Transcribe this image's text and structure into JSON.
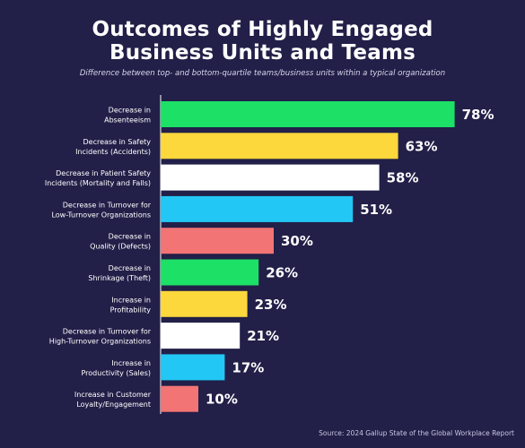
{
  "header": {
    "title_line1": "Outcomes of Highly Engaged",
    "title_line2": "Business Units and Teams",
    "subtitle": "Difference between top- and bottom-quartile teams/business units within a typical organization"
  },
  "source": "Source: 2024 Gallup State of the Global Workplace Report",
  "chart_data": {
    "type": "bar",
    "orientation": "horizontal",
    "categories": [
      [
        "Decrease in",
        "Absenteeism"
      ],
      [
        "Decrease in Safety",
        "Incidents (Accidents)"
      ],
      [
        "Decrease in Patient Safety",
        "Incidents (Mortality and Falls)"
      ],
      [
        "Decrease in Turnover for",
        "Low-Turnover Organizations"
      ],
      [
        "Decrease in",
        "Quality (Defects)"
      ],
      [
        "Decrease in",
        "Shrinkage (Theft)"
      ],
      [
        "Increase in",
        "Profitability"
      ],
      [
        "Decrease in Turnover for",
        "High-Turnover Organizations"
      ],
      [
        "Increase in",
        "Productivity (Sales)"
      ],
      [
        "Increase in Customer",
        "Loyalty/Engagement"
      ]
    ],
    "values": [
      78,
      63,
      58,
      51,
      30,
      26,
      23,
      21,
      17,
      10
    ],
    "value_labels": [
      "78%",
      "63%",
      "58%",
      "51%",
      "30%",
      "26%",
      "23%",
      "21%",
      "17%",
      "10%"
    ],
    "bar_colors": [
      "#1de066",
      "#fcd83c",
      "#ffffff",
      "#22c7f5",
      "#f27474",
      "#1de066",
      "#fcd83c",
      "#ffffff",
      "#22c7f5",
      "#f27474"
    ],
    "xlim": [
      0,
      100
    ],
    "grid": false,
    "legend": "none"
  }
}
